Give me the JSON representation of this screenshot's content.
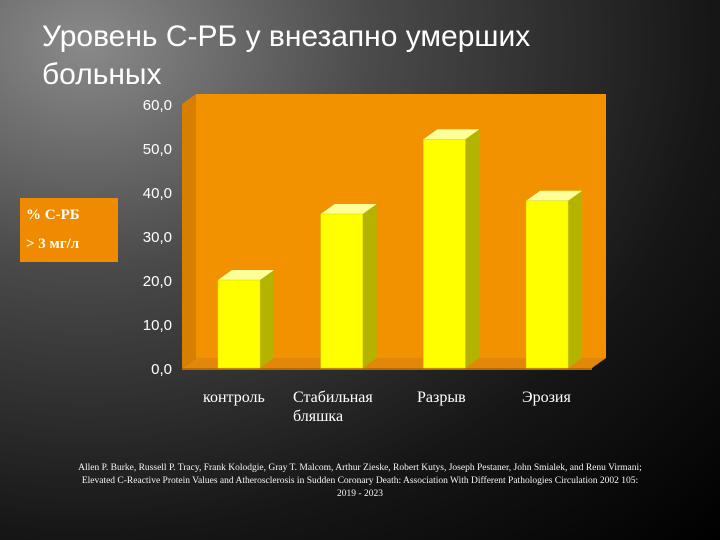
{
  "title_line1": "Уровень С-РБ у внезапно умерших",
  "title_line2": "больных",
  "legend_line1": "% С-РБ",
  "legend_line2": "> 3 мг/л",
  "chart_data": {
    "type": "bar",
    "categories": [
      "контроль",
      "Стабильная бляшка",
      "Разрыв",
      "Эрозия"
    ],
    "category_lines": [
      [
        "контроль"
      ],
      [
        "Стабильная",
        "бляшка"
      ],
      [
        "Разрыв"
      ],
      [
        "Эрозия"
      ]
    ],
    "values": [
      20,
      35,
      52,
      38
    ],
    "ylim": [
      0,
      60
    ],
    "yticks": [
      "0,0",
      "10,0",
      "20,0",
      "30,0",
      "40,0",
      "50,0",
      "60,0"
    ],
    "ytick_values": [
      0,
      10,
      20,
      30,
      40,
      50,
      60
    ],
    "ylabel": "% С-РБ > 3 мг/л",
    "xlabel": "",
    "grid": false,
    "colors": {
      "plot_back": "#f39200",
      "floor": "#e2870a",
      "bar_front": "#ffff00",
      "bar_side": "#b3b300",
      "bar_top": "#ffff99"
    }
  },
  "footer": {
    "line1": "Allen P. Burke, Russell P. Tracy, Frank Kolodgie, Gray T. Malcom, Arthur Zieske, Robert Kutys, Joseph Pestaner, John Smialek, and Renu Virmani;",
    "line2": "Elevated C-Reactive Protein Values and Atherosclerosis in Sudden Coronary Death: Association With Different Pathologies Circulation 2002 105:",
    "line3": "2019 - 2023"
  }
}
